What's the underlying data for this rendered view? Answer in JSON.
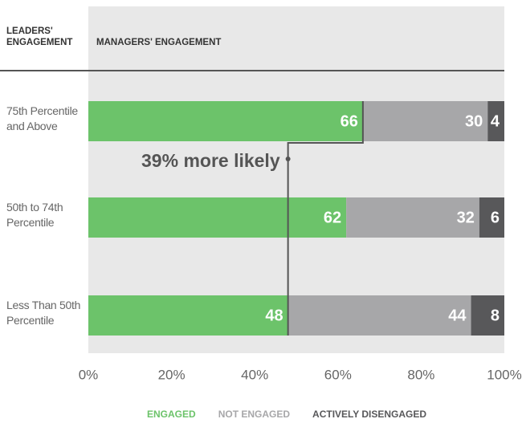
{
  "chart_data": {
    "type": "stacked-barh",
    "row_header": "LEADERS' ENGAGEMENT",
    "column_header": "MANAGERS' ENGAGEMENT",
    "categories": [
      "75th Percentile and Above",
      "50th to 74th Percentile",
      "Less Than 50th Percentile"
    ],
    "series": [
      {
        "name": "ENGAGED",
        "color": "#6cc36a",
        "values": [
          66,
          62,
          48
        ]
      },
      {
        "name": "NOT ENGAGED",
        "color": "#a7a7a9",
        "values": [
          30,
          32,
          44
        ]
      },
      {
        "name": "ACTIVELY DISENGAGED",
        "color": "#58585a",
        "values": [
          4,
          6,
          8
        ]
      }
    ],
    "xlim": [
      0,
      100
    ],
    "xticks": [
      {
        "value": 0,
        "label": "0%"
      },
      {
        "value": 20,
        "label": "20%"
      },
      {
        "value": 40,
        "label": "40%"
      },
      {
        "value": 60,
        "label": "60%"
      },
      {
        "value": 80,
        "label": "80%"
      },
      {
        "value": 100,
        "label": "100%"
      }
    ],
    "annotation": "39% more likely",
    "legend": "bottom"
  }
}
